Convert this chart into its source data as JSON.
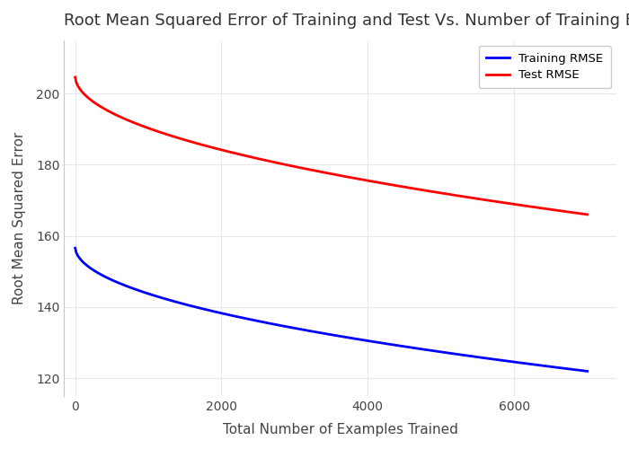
{
  "title": "Root Mean Squared Error of Training and Test Vs. Number of Training Examples",
  "xlabel": "Total Number of Examples Trained",
  "ylabel": "Root Mean Squared Error",
  "x_start": 1,
  "x_end": 7000,
  "train_start": 157,
  "train_end": 122,
  "test_start": 205,
  "test_end": 166,
  "train_color": "#0000ff",
  "test_color": "#ff0000",
  "bg_color": "#ffffff",
  "plot_bg_color": "#ffffff",
  "grid_color": "#e8e8e8",
  "title_fontsize": 13,
  "label_fontsize": 11,
  "tick_fontsize": 10,
  "legend_entries": [
    "Training RMSE",
    "Test RMSE"
  ],
  "xlim": [
    -150,
    7400
  ],
  "ylim": [
    115,
    215
  ],
  "yticks": [
    120,
    140,
    160,
    180,
    200
  ],
  "xticks": [
    0,
    2000,
    4000,
    6000
  ]
}
